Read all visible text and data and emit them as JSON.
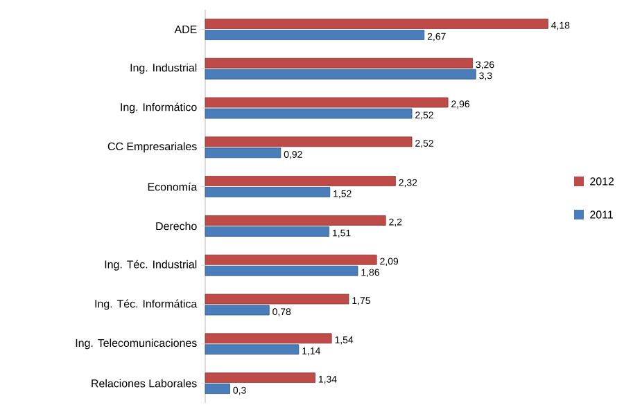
{
  "chart_data": {
    "type": "bar",
    "orientation": "horizontal",
    "categories": [
      "ADE",
      "Ing. Industrial",
      "Ing. Informático",
      "CC Empresariales",
      "Economía",
      "Derecho",
      "Ing. Téc. Industrial",
      "Ing. Téc. Informática",
      "Ing. Telecomunicaciones",
      "Relaciones Laborales"
    ],
    "series": [
      {
        "name": "2012",
        "color": "#be4b48",
        "values": [
          4.18,
          3.26,
          2.96,
          2.52,
          2.32,
          2.2,
          2.09,
          1.75,
          1.54,
          1.34
        ],
        "value_labels": [
          "4,18",
          "3,26",
          "2,96",
          "2,52",
          "2,32",
          "2,2",
          "2,09",
          "1,75",
          "1,54",
          "1,34"
        ]
      },
      {
        "name": "2011",
        "color": "#4a7ebb",
        "values": [
          2.67,
          3.3,
          2.52,
          0.92,
          1.52,
          1.51,
          1.86,
          0.78,
          1.14,
          0.3
        ],
        "value_labels": [
          "2,67",
          "3,3",
          "2,52",
          "0,92",
          "1,52",
          "1,51",
          "1,86",
          "0,78",
          "1,14",
          "0,3"
        ]
      }
    ],
    "tick_labels": "y",
    "legend": "right"
  }
}
